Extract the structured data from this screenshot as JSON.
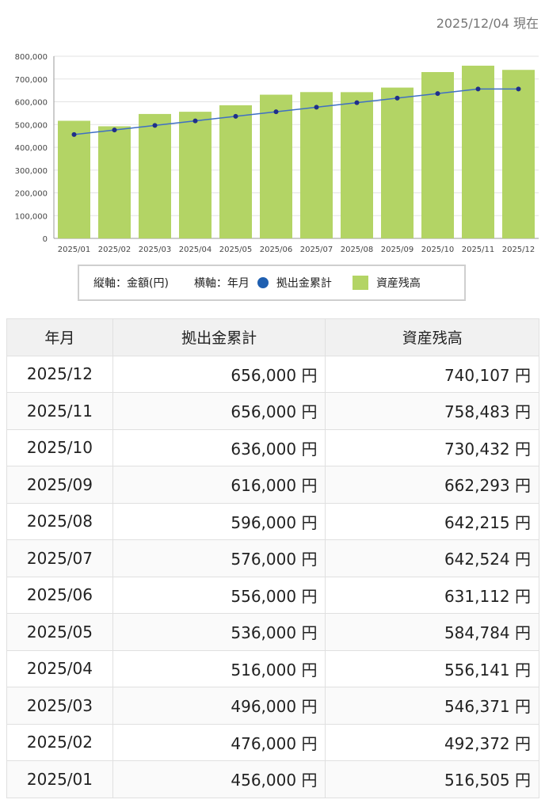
{
  "as_of": "2025/12/04 現在",
  "legend": {
    "y_axis": "縦軸：金額(円)",
    "x_axis": "横軸：年月",
    "line_label": "拠出金累計",
    "bar_label": "資産残高"
  },
  "colors": {
    "bar": "#b3d465",
    "line": "#3f6fc4",
    "marker": "#1f2f8a"
  },
  "chart_data": {
    "type": "bar",
    "categories": [
      "2025/01",
      "2025/02",
      "2025/03",
      "2025/04",
      "2025/05",
      "2025/06",
      "2025/07",
      "2025/08",
      "2025/09",
      "2025/10",
      "2025/11",
      "2025/12"
    ],
    "series": [
      {
        "name": "資産残高",
        "type": "bar",
        "values": [
          516505,
          492372,
          546371,
          556141,
          584784,
          631112,
          642524,
          642215,
          662293,
          730432,
          758483,
          740107
        ]
      },
      {
        "name": "拠出金累計",
        "type": "line",
        "values": [
          456000,
          476000,
          496000,
          516000,
          536000,
          556000,
          576000,
          596000,
          616000,
          636000,
          656000,
          656000
        ]
      }
    ],
    "ylim": [
      0,
      800000
    ],
    "yticks": [
      "0",
      "100,000",
      "200,000",
      "300,000",
      "400,000",
      "500,000",
      "600,000",
      "700,000",
      "800,000"
    ],
    "grid": true
  },
  "table": {
    "headers": [
      "年月",
      "拠出金累計",
      "資産残高"
    ],
    "rows": [
      {
        "month": "2025/12",
        "contrib": "656,000 円",
        "balance": "740,107 円"
      },
      {
        "month": "2025/11",
        "contrib": "656,000 円",
        "balance": "758,483 円"
      },
      {
        "month": "2025/10",
        "contrib": "636,000 円",
        "balance": "730,432 円"
      },
      {
        "month": "2025/09",
        "contrib": "616,000 円",
        "balance": "662,293 円"
      },
      {
        "month": "2025/08",
        "contrib": "596,000 円",
        "balance": "642,215 円"
      },
      {
        "month": "2025/07",
        "contrib": "576,000 円",
        "balance": "642,524 円"
      },
      {
        "month": "2025/06",
        "contrib": "556,000 円",
        "balance": "631,112 円"
      },
      {
        "month": "2025/05",
        "contrib": "536,000 円",
        "balance": "584,784 円"
      },
      {
        "month": "2025/04",
        "contrib": "516,000 円",
        "balance": "556,141 円"
      },
      {
        "month": "2025/03",
        "contrib": "496,000 円",
        "balance": "546,371 円"
      },
      {
        "month": "2025/02",
        "contrib": "476,000 円",
        "balance": "492,372 円"
      },
      {
        "month": "2025/01",
        "contrib": "456,000 円",
        "balance": "516,505 円"
      }
    ]
  }
}
